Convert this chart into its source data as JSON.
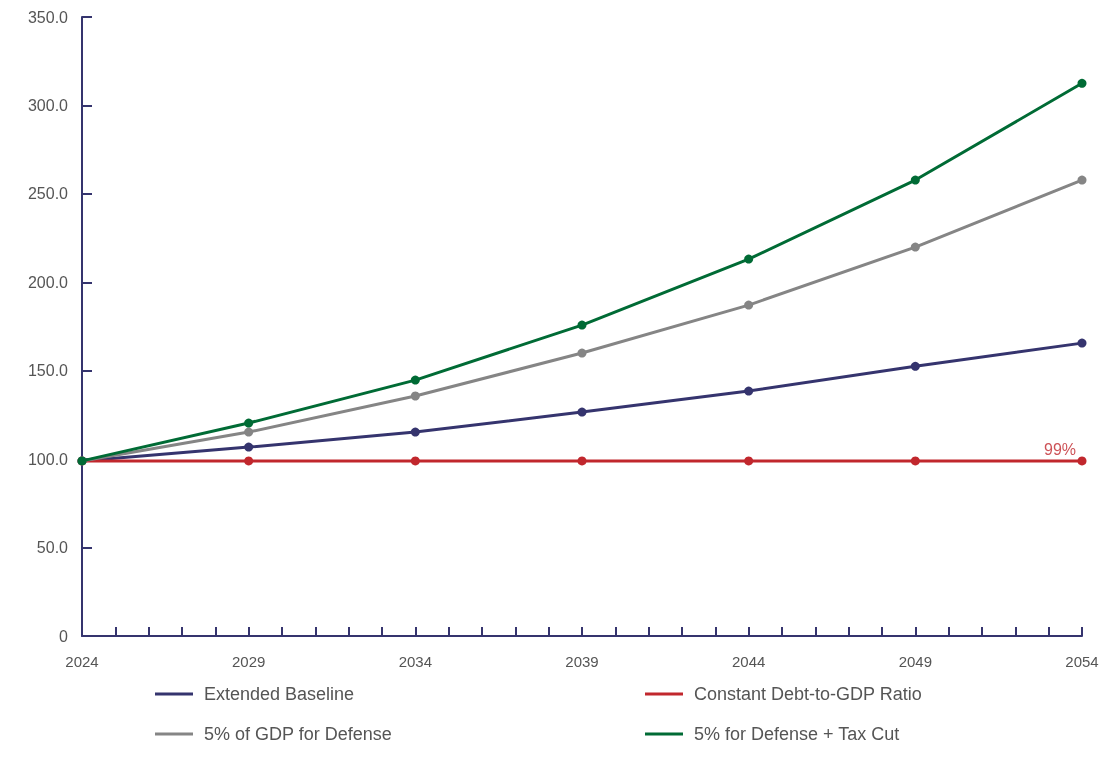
{
  "chart_data": {
    "type": "line",
    "x": [
      2024,
      2029,
      2034,
      2039,
      2044,
      2049,
      2054
    ],
    "series": [
      {
        "name": "Extended Baseline",
        "color": "#35346e",
        "values": [
          99,
          106.8,
          115.3,
          126.6,
          138.5,
          152.5,
          165.6
        ]
      },
      {
        "name": "Constant Debt-to-GDP Ratio",
        "color": "#c1272d",
        "values": [
          99,
          99,
          99,
          99,
          99,
          99,
          99
        ]
      },
      {
        "name": "5% of GDP for Defense",
        "color": "#858585",
        "values": [
          99,
          115.3,
          135.7,
          160,
          187.1,
          219.9,
          257.8
        ]
      },
      {
        "name": "5% for Defense + Tax Cut",
        "color": "#006b35",
        "values": [
          99,
          120.4,
          144.7,
          175.8,
          213.1,
          257.8,
          312.5
        ]
      }
    ],
    "xlim": [
      2024,
      2054
    ],
    "xticks": [
      2024,
      {
        "value": 2025,
        "label": null
      },
      {
        "value": 2026,
        "label": null
      },
      {
        "value": 2027,
        "label": null
      },
      {
        "value": 2028,
        "label": null
      },
      2029,
      {
        "value": 2030,
        "label": null
      },
      {
        "value": 2031,
        "label": null
      },
      {
        "value": 2032,
        "label": null
      },
      {
        "value": 2033,
        "label": null
      },
      2034,
      {
        "value": 2035,
        "label": null
      },
      {
        "value": 2036,
        "label": null
      },
      {
        "value": 2037,
        "label": null
      },
      {
        "value": 2038,
        "label": null
      },
      2039,
      {
        "value": 2040,
        "label": null
      },
      {
        "value": 2041,
        "label": null
      },
      {
        "value": 2042,
        "label": null
      },
      {
        "value": 2043,
        "label": null
      },
      2044,
      {
        "value": 2045,
        "label": null
      },
      {
        "value": 2046,
        "label": null
      },
      {
        "value": 2047,
        "label": null
      },
      {
        "value": 2048,
        "label": null
      },
      2049,
      {
        "value": 2050,
        "label": null
      },
      {
        "value": 2051,
        "label": null
      },
      {
        "value": 2052,
        "label": null
      },
      {
        "value": 2053,
        "label": null
      },
      2054
    ],
    "ylim": [
      0,
      350
    ],
    "yticks": [
      0,
      {
        "value": 50,
        "label": "50.0"
      },
      {
        "value": 100,
        "label": "100.0"
      },
      {
        "value": 150,
        "label": "150.0"
      },
      {
        "value": 200,
        "label": "200.0"
      },
      {
        "value": 250,
        "label": "250.0"
      },
      {
        "value": 300,
        "label": "300.0"
      },
      {
        "value": 350,
        "label": "350.0"
      }
    ],
    "annotations": [
      {
        "text": "99%",
        "x": 2054,
        "y": 99
      }
    ],
    "grid": false,
    "legend": "bottom",
    "marker": "circle",
    "line_style": "solid"
  }
}
